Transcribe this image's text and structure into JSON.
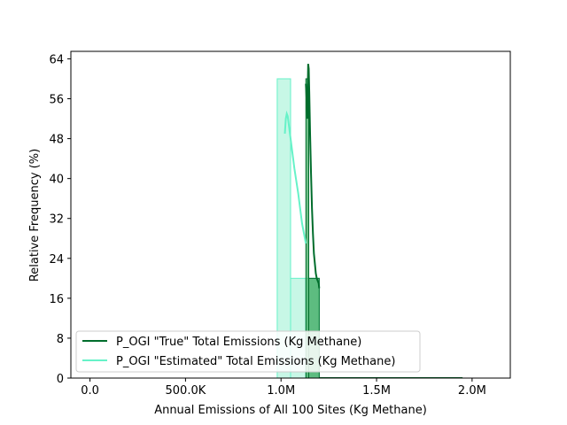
{
  "chart_data": {
    "type": "histogram",
    "xlabel": "Annual Emissions of All 100 Sites (Kg Methane)",
    "ylabel": "Relative Frequency (%)",
    "xlim": [
      -100000,
      2200000
    ],
    "ylim": [
      0,
      65.5
    ],
    "x_ticks": [
      0,
      500000,
      1000000,
      1500000,
      2000000
    ],
    "x_tick_labels": [
      "0.0",
      "500.0K",
      "1.0M",
      "1.5M",
      "2.0M"
    ],
    "y_ticks": [
      0,
      8,
      16,
      24,
      32,
      40,
      48,
      56,
      64
    ],
    "y_tick_labels": [
      "0",
      "8",
      "16",
      "24",
      "32",
      "40",
      "48",
      "56",
      "64"
    ],
    "grid": false,
    "legend_position": "lower-left",
    "series": [
      {
        "name": "P_OGI \"True\" Total Emissions (Kg Methane)",
        "color": "#006d2c",
        "fill": "#31a354",
        "bins": [
          {
            "x0": 1130000,
            "x1": 1145000,
            "value": 60
          },
          {
            "x0": 1145000,
            "x1": 1200000,
            "value": 20
          }
        ],
        "kde_x": [
          1130000,
          1135000,
          1138000,
          1140000,
          1142000,
          1145000,
          1148000,
          1152000,
          1157000,
          1162000,
          1167000,
          1172000,
          1177000,
          1182000,
          1187000,
          1192000,
          1197000,
          1200000
        ],
        "kde_y": [
          59,
          55,
          52,
          58,
          63,
          62,
          57,
          49,
          41,
          34,
          29,
          25,
          23,
          21,
          20,
          19.5,
          19,
          18
        ]
      },
      {
        "name": "P_OGI \"Estimated\" Total Emissions (Kg Methane)",
        "color": "#66f2c8",
        "fill": "#bdf6e2",
        "bins": [
          {
            "x0": 980000,
            "x1": 1050000,
            "value": 60
          },
          {
            "x0": 1050000,
            "x1": 1130000,
            "value": 20
          },
          {
            "x0": 1130000,
            "x1": 1200000,
            "value": 20
          }
        ],
        "kde_x": [
          1020000,
          1025000,
          1030000,
          1035000,
          1040000,
          1050000,
          1060000,
          1070000,
          1080000,
          1090000,
          1100000,
          1110000,
          1120000,
          1130000
        ],
        "kde_y": [
          49,
          52,
          53,
          52.5,
          51,
          48,
          45,
          42,
          39.5,
          37,
          34,
          31,
          29,
          27
        ]
      }
    ]
  }
}
